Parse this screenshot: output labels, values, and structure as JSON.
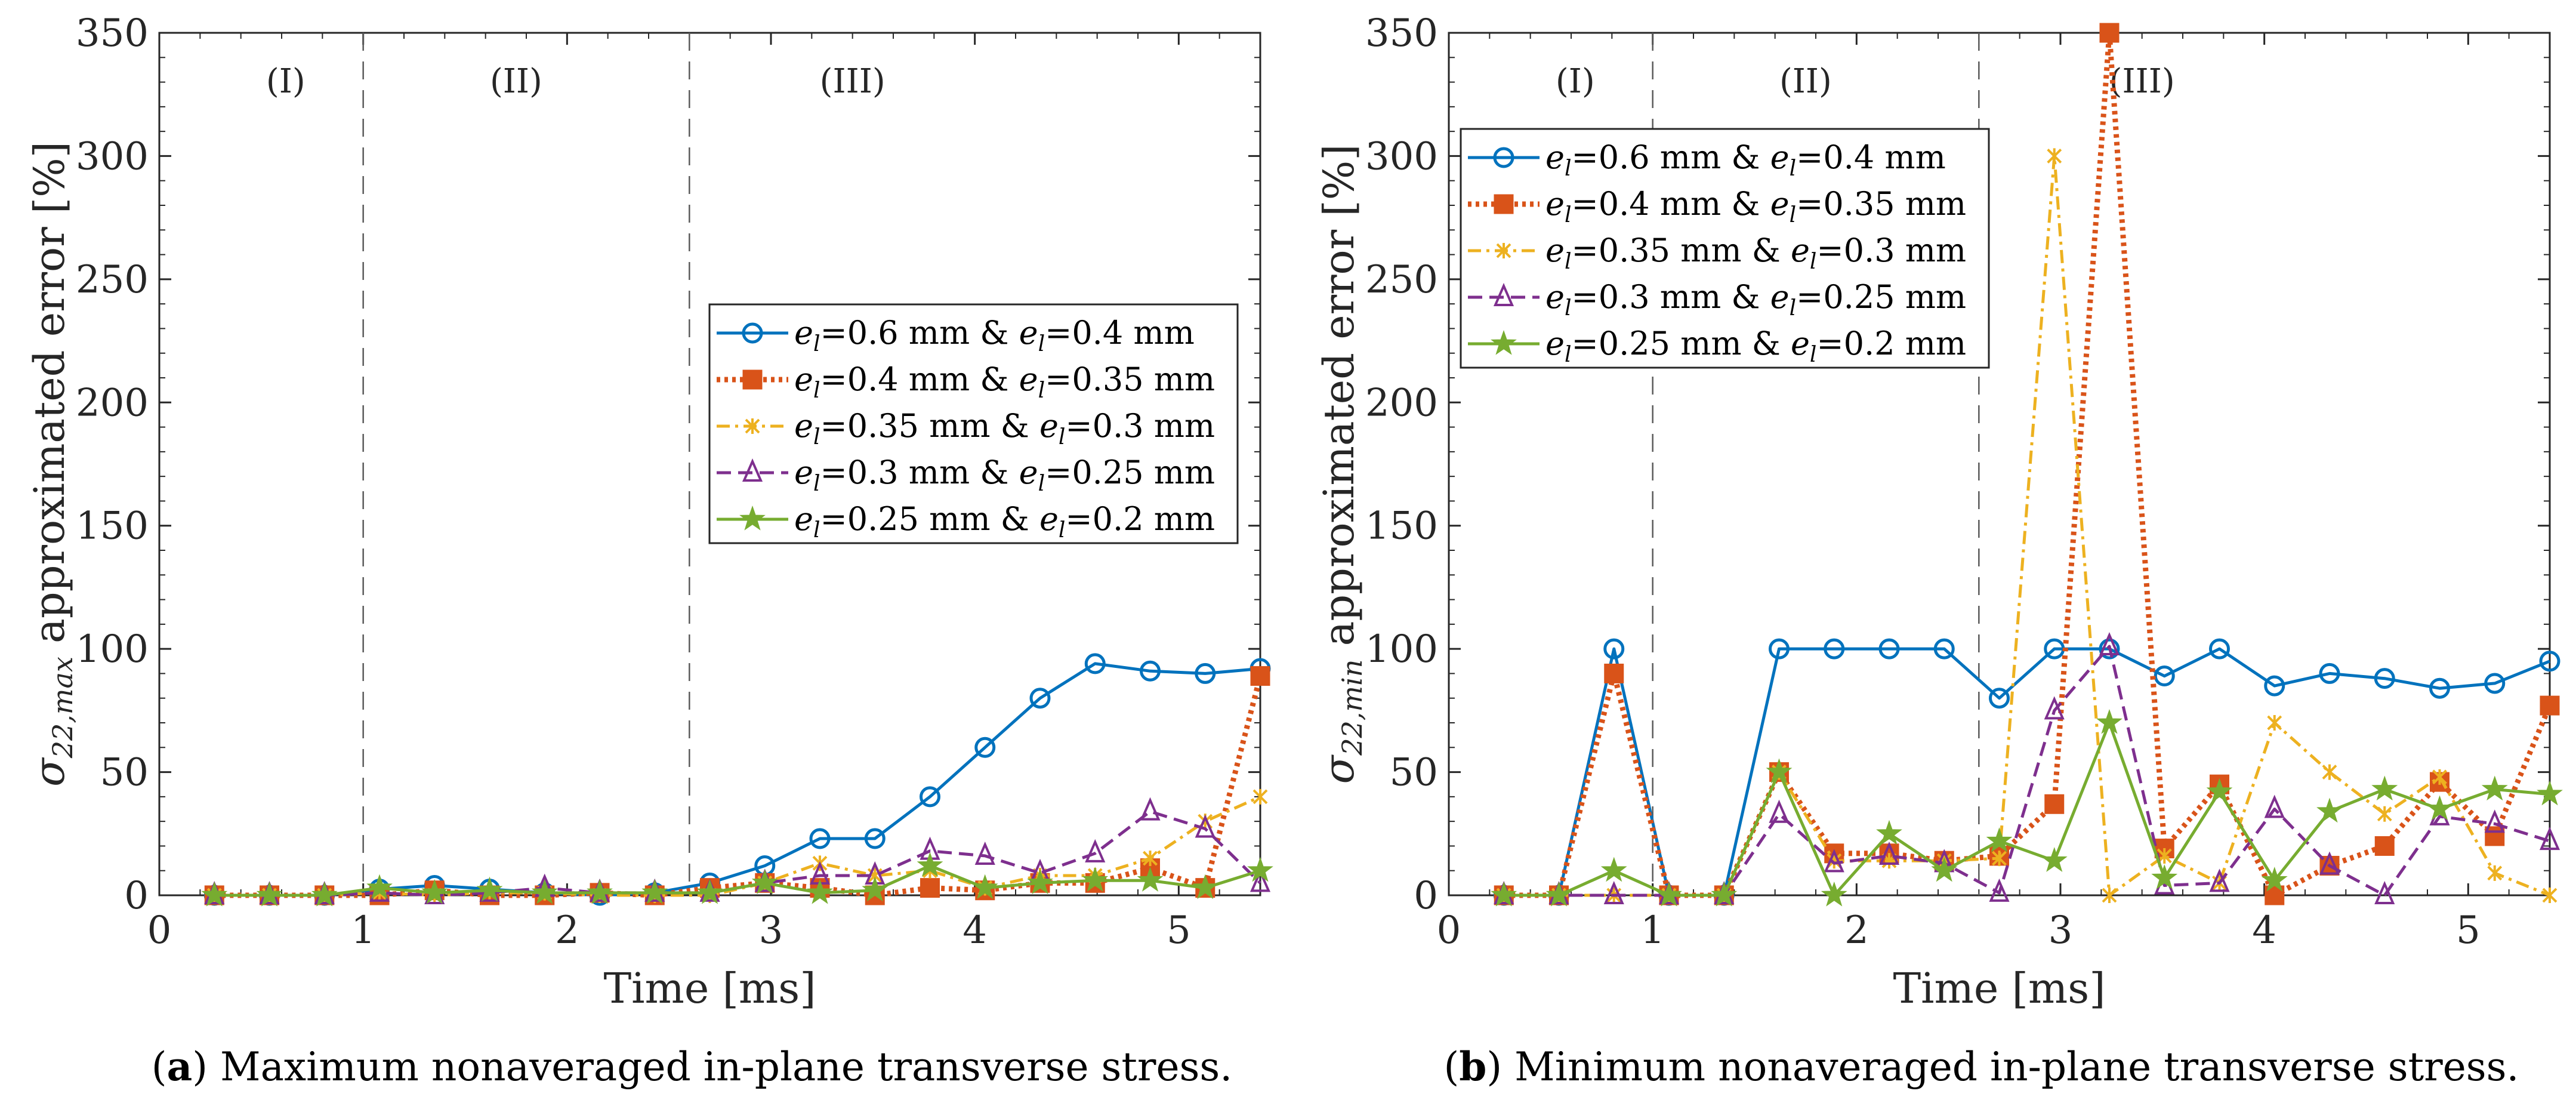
{
  "colors": {
    "s1": "#0072BD",
    "s2": "#D95319",
    "s3": "#EDB120",
    "s4": "#7E2F8E",
    "s5": "#77AC30",
    "axis": "#262626",
    "divider": "#5a5a5a"
  },
  "chart_data": [
    {
      "type": "line",
      "panel": "a",
      "caption": "Maximum nonaveraged in-plane transverse stress.",
      "xlabel": "Time [ms]",
      "ylabel": {
        "symbol": "σ",
        "subscript": "22,max",
        "text": " approximated error [%]"
      },
      "xlim": [
        0,
        5.4
      ],
      "ylim": [
        0,
        350
      ],
      "xticks": [
        0,
        1,
        2,
        3,
        4,
        5
      ],
      "yticks": [
        0,
        50,
        100,
        150,
        200,
        250,
        300,
        350
      ],
      "grid": false,
      "legend_position": "center-right",
      "regions": [
        {
          "label": "(I)",
          "x": 0.62
        },
        {
          "label": "(II)",
          "x": 1.75
        },
        {
          "label": "(III)",
          "x": 3.4
        }
      ],
      "dividers": [
        1.0,
        2.6
      ],
      "x": [
        0.27,
        0.54,
        0.81,
        1.08,
        1.35,
        1.62,
        1.89,
        2.16,
        2.43,
        2.7,
        2.97,
        3.24,
        3.51,
        3.78,
        4.05,
        4.32,
        4.59,
        4.86,
        5.13,
        5.4
      ],
      "series": [
        {
          "name": "e_l=0.6 mm & e_l=0.4 mm",
          "first": "0.6 mm",
          "second": "0.4 mm",
          "color": "s1",
          "marker": "circle",
          "dash": "solid",
          "values": [
            0,
            0,
            0,
            2.5,
            4,
            2.5,
            1,
            0,
            1,
            5,
            12,
            23,
            23,
            40,
            60,
            80,
            94,
            91,
            90,
            92
          ]
        },
        {
          "name": "e_l=0.4 mm & e_l=0.35 mm",
          "first": "0.4 mm",
          "second": "0.35 mm",
          "color": "s2",
          "marker": "square",
          "dash": "dotted",
          "values": [
            0,
            0,
            0,
            0,
            2,
            0,
            0,
            1,
            0,
            3,
            5,
            3,
            0,
            3,
            2,
            5,
            5,
            11,
            3,
            89
          ]
        },
        {
          "name": "e_l=0.35 mm & e_l=0.3 mm",
          "first": "0.35 mm",
          "second": "0.3 mm",
          "color": "s3",
          "marker": "x",
          "dash": "dashdot",
          "values": [
            0,
            0,
            0,
            1,
            0,
            1,
            1,
            0,
            0,
            0,
            5,
            13,
            8,
            10,
            3,
            8,
            8,
            15,
            30,
            40
          ]
        },
        {
          "name": "e_l=0.3 mm & e_l=0.25 mm",
          "first": "0.3 mm",
          "second": "0.25 mm",
          "color": "s4",
          "marker": "triangle",
          "dash": "dashed",
          "values": [
            0,
            0,
            0,
            1,
            0,
            1,
            3,
            1,
            1,
            1,
            5,
            8,
            8,
            18,
            16,
            9,
            17,
            34,
            27,
            5
          ]
        },
        {
          "name": "e_l=0.25 mm & e_l=0.2 mm",
          "first": "0.25 mm",
          "second": "0.2 mm",
          "color": "s5",
          "marker": "star",
          "dash": "solid",
          "values": [
            0,
            0,
            0,
            3,
            1,
            2,
            1,
            1,
            1,
            1,
            5,
            1,
            2,
            12,
            3,
            5,
            6,
            6,
            3,
            10
          ]
        }
      ]
    },
    {
      "type": "line",
      "panel": "b",
      "caption": "Minimum nonaveraged in-plane transverse stress.",
      "xlabel": "Time [ms]",
      "ylabel": {
        "symbol": "σ",
        "subscript": "22,min",
        "text": " approximated error [%]"
      },
      "xlim": [
        0,
        5.4
      ],
      "ylim": [
        0,
        350
      ],
      "xticks": [
        0,
        1,
        2,
        3,
        4,
        5
      ],
      "yticks": [
        0,
        50,
        100,
        150,
        200,
        250,
        300,
        350
      ],
      "grid": false,
      "legend_position": "top-left",
      "regions": [
        {
          "label": "(I)",
          "x": 0.62
        },
        {
          "label": "(II)",
          "x": 1.75
        },
        {
          "label": "(III)",
          "x": 3.4
        }
      ],
      "dividers": [
        1.0,
        2.6
      ],
      "x": [
        0.27,
        0.54,
        0.81,
        1.08,
        1.35,
        1.62,
        1.89,
        2.16,
        2.43,
        2.7,
        2.97,
        3.24,
        3.51,
        3.78,
        4.05,
        4.32,
        4.59,
        4.86,
        5.13,
        5.4
      ],
      "series": [
        {
          "name": "e_l=0.6 mm & e_l=0.4 mm",
          "first": "0.6 mm",
          "second": "0.4 mm",
          "color": "s1",
          "marker": "circle",
          "dash": "solid",
          "values": [
            0,
            0,
            100,
            0,
            0,
            100,
            100,
            100,
            100,
            80,
            100,
            100,
            89,
            100,
            85,
            90,
            88,
            84,
            86,
            95
          ]
        },
        {
          "name": "e_l=0.4 mm & e_l=0.35 mm",
          "first": "0.4 mm",
          "second": "0.35 mm",
          "color": "s2",
          "marker": "square",
          "dash": "dotted",
          "values": [
            0,
            0,
            90,
            0,
            0,
            50,
            17,
            17,
            14,
            16,
            37,
            350,
            19,
            45,
            0,
            12,
            20,
            46,
            24,
            77
          ]
        },
        {
          "name": "e_l=0.35 mm & e_l=0.3 mm",
          "first": "0.35 mm",
          "second": "0.3 mm",
          "color": "s3",
          "marker": "x",
          "dash": "dashdot",
          "values": [
            0,
            0,
            0,
            0,
            0,
            50,
            14,
            14,
            14,
            15,
            300,
            0,
            16,
            5,
            70,
            50,
            33,
            48,
            9,
            0
          ]
        },
        {
          "name": "e_l=0.3 mm & e_l=0.25 mm",
          "first": "0.3 mm",
          "second": "0.25 mm",
          "color": "s4",
          "marker": "triangle",
          "dash": "dashed",
          "values": [
            0,
            0,
            0,
            0,
            0,
            33,
            13,
            16,
            13,
            1,
            75,
            101,
            4,
            5,
            35,
            12,
            0,
            32,
            29,
            22
          ]
        },
        {
          "name": "e_l=0.25 mm & e_l=0.2 mm",
          "first": "0.25 mm",
          "second": "0.2 mm",
          "color": "s5",
          "marker": "star",
          "dash": "solid",
          "values": [
            0,
            0,
            10,
            0,
            0,
            50,
            0,
            25,
            10,
            22,
            14,
            70,
            7,
            42,
            6,
            34,
            43,
            35,
            43,
            41
          ]
        }
      ]
    }
  ],
  "legend_prefix": {
    "var": "e",
    "sub": "l",
    "eq": "=",
    "amp": " & "
  }
}
